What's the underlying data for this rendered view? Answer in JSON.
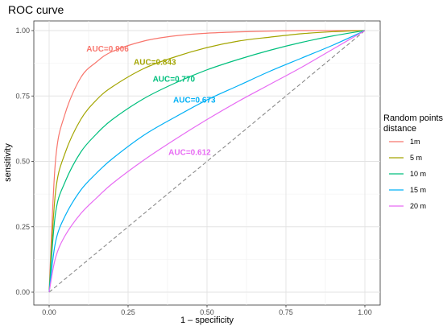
{
  "chart_data": {
    "type": "line",
    "title": "ROC curve",
    "xlabel": "1 – specificity",
    "ylabel": "sensitivity",
    "xlim": [
      0,
      1
    ],
    "ylim": [
      0,
      1
    ],
    "x_ticks": [
      "0.00",
      "0.25",
      "0.50",
      "0.75",
      "1.00"
    ],
    "y_ticks": [
      "0.00",
      "0.25",
      "0.50",
      "0.75",
      "1.00"
    ],
    "grid": true,
    "legend": {
      "title_lines": [
        "Random points",
        "distance"
      ],
      "placement": "right"
    },
    "series": [
      {
        "name": "1m",
        "auc": 0.906,
        "auc_label": "AUC=0.906",
        "color": "#F8766D",
        "label_at": [
          0.185,
          0.92
        ],
        "x": [
          0,
          0.02,
          0.05,
          0.1,
          0.15,
          0.2,
          0.3,
          0.4,
          0.5,
          0.6,
          0.7,
          0.8,
          0.9,
          1.0
        ],
        "y": [
          0,
          0.5,
          0.68,
          0.82,
          0.88,
          0.92,
          0.96,
          0.98,
          0.99,
          0.995,
          0.998,
          1.0,
          1.0,
          1.0
        ]
      },
      {
        "name": "5 m",
        "auc": 0.843,
        "auc_label": "AUC=0.843",
        "color": "#A3A500",
        "label_at": [
          0.335,
          0.87
        ],
        "x": [
          0,
          0.02,
          0.05,
          0.1,
          0.15,
          0.2,
          0.3,
          0.4,
          0.5,
          0.6,
          0.7,
          0.8,
          0.9,
          1.0
        ],
        "y": [
          0,
          0.38,
          0.53,
          0.66,
          0.735,
          0.785,
          0.855,
          0.9,
          0.935,
          0.96,
          0.975,
          0.988,
          0.996,
          1.0
        ]
      },
      {
        "name": "10 m",
        "auc": 0.77,
        "auc_label": "AUC=0.770",
        "color": "#00BF7D",
        "label_at": [
          0.395,
          0.805
        ],
        "x": [
          0,
          0.02,
          0.05,
          0.1,
          0.15,
          0.2,
          0.3,
          0.4,
          0.5,
          0.6,
          0.7,
          0.8,
          0.9,
          1.0
        ],
        "y": [
          0,
          0.3,
          0.42,
          0.535,
          0.605,
          0.66,
          0.74,
          0.8,
          0.85,
          0.89,
          0.925,
          0.955,
          0.98,
          1.0
        ]
      },
      {
        "name": "15 m",
        "auc": 0.673,
        "auc_label": "AUC=0.673",
        "color": "#00B0F6",
        "label_at": [
          0.46,
          0.725
        ],
        "x": [
          0,
          0.02,
          0.05,
          0.1,
          0.15,
          0.2,
          0.3,
          0.4,
          0.5,
          0.6,
          0.7,
          0.8,
          0.9,
          1.0
        ],
        "y": [
          0,
          0.19,
          0.29,
          0.39,
          0.455,
          0.51,
          0.6,
          0.67,
          0.735,
          0.79,
          0.845,
          0.895,
          0.945,
          1.0
        ]
      },
      {
        "name": "20 m",
        "auc": 0.612,
        "auc_label": "AUC=0.612",
        "color": "#E76BF3",
        "label_at": [
          0.445,
          0.525
        ],
        "x": [
          0,
          0.02,
          0.05,
          0.1,
          0.15,
          0.2,
          0.3,
          0.4,
          0.5,
          0.6,
          0.7,
          0.8,
          0.9,
          1.0
        ],
        "y": [
          0,
          0.13,
          0.215,
          0.3,
          0.36,
          0.415,
          0.505,
          0.585,
          0.66,
          0.73,
          0.795,
          0.86,
          0.93,
          1.0
        ]
      }
    ],
    "reference_line": {
      "x": [
        0,
        1
      ],
      "y": [
        0,
        1
      ],
      "color": "#7f7f7f",
      "dashed": true
    }
  }
}
